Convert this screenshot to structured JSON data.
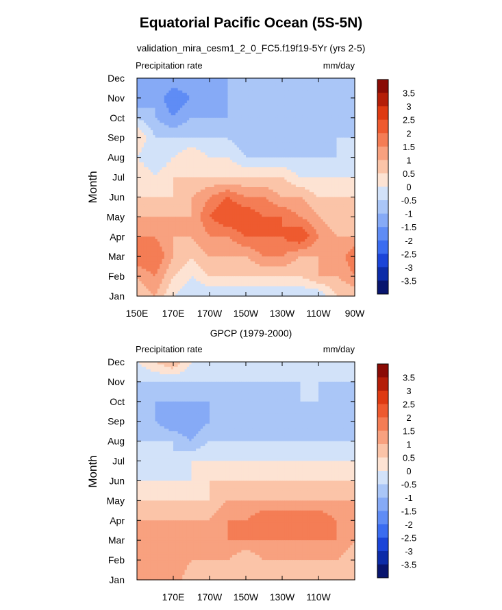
{
  "figure": {
    "title": "Equatorial Pacific Ocean (5S-5N)",
    "panel1_title": "validation_mira_cesm1_2_0_FC5.f19f19-5Yr (yrs 2-5)",
    "panel2_title": "GPCP (1979-2000)"
  },
  "colorbar": {
    "levels": [
      "3.5",
      "3",
      "2.5",
      "2",
      "1.5",
      "1",
      "0.5",
      "0",
      "-0.5",
      "-1",
      "-1.5",
      "-2",
      "-2.5",
      "-3",
      "-3.5"
    ],
    "colors": [
      "#08156e",
      "#0c2ca8",
      "#1a44d8",
      "#3a6cf0",
      "#5f8cf5",
      "#86aaf6",
      "#aac6f7",
      "#d2e2f9",
      "#fde3d3",
      "#fbc4a8",
      "#f8a17f",
      "#f47d55",
      "#ee5a2f",
      "#de3a12",
      "#b41e08",
      "#8a0b05"
    ]
  },
  "chart_data": [
    {
      "type": "heatmap",
      "title": "validation_mira_cesm1_2_0_FC5.f19f19-5Yr (yrs 2-5)",
      "left_label": "Precipitation rate",
      "right_label": "mm/day",
      "ylabel": "Month",
      "x_tick_labels": [
        "150E",
        "170E",
        "170W",
        "150W",
        "130W",
        "110W",
        "90W"
      ],
      "x_tick_lon": [
        150,
        170,
        190,
        210,
        230,
        250,
        270
      ],
      "xlim": [
        150,
        270
      ],
      "y_tick_labels": [
        "Jan",
        "Feb",
        "Mar",
        "Apr",
        "May",
        "Jun",
        "Jul",
        "Aug",
        "Sep",
        "Oct",
        "Nov",
        "Dec"
      ],
      "ylim": [
        1,
        12
      ],
      "lon": [
        150,
        160,
        170,
        180,
        190,
        200,
        210,
        220,
        230,
        240,
        250,
        260,
        270
      ],
      "month": [
        1,
        2,
        3,
        4,
        5,
        6,
        7,
        8,
        9,
        10,
        11,
        12
      ],
      "values": [
        [
          0.5,
          1.0,
          0.0,
          -0.5,
          -0.5,
          -0.5,
          -0.5,
          -0.5,
          -0.5,
          -0.5,
          -0.5,
          0.5,
          0.5
        ],
        [
          1.0,
          1.5,
          0.5,
          0.0,
          0.5,
          0.5,
          0.5,
          0.5,
          0.5,
          0.5,
          1.0,
          1.0,
          1.5
        ],
        [
          2.0,
          2.0,
          1.0,
          0.5,
          1.0,
          1.0,
          1.0,
          1.5,
          1.5,
          1.0,
          1.0,
          1.0,
          2.0
        ],
        [
          1.5,
          1.5,
          1.0,
          1.0,
          1.5,
          1.5,
          2.0,
          2.0,
          2.0,
          2.5,
          1.5,
          1.0,
          1.0
        ],
        [
          1.0,
          1.0,
          1.0,
          1.0,
          2.0,
          2.5,
          2.5,
          2.0,
          2.0,
          1.5,
          1.0,
          0.5,
          0.5
        ],
        [
          0.5,
          0.5,
          0.5,
          1.0,
          1.5,
          2.0,
          1.5,
          1.5,
          1.0,
          1.0,
          0.5,
          0.5,
          0.5
        ],
        [
          0.5,
          0.0,
          0.5,
          0.5,
          0.5,
          0.5,
          0.5,
          0.5,
          0.5,
          0.0,
          0.0,
          0.0,
          0.0
        ],
        [
          0.0,
          -0.5,
          0.0,
          0.5,
          0.0,
          0.0,
          -0.5,
          -0.5,
          -0.5,
          -0.5,
          -0.5,
          -0.5,
          -0.5
        ],
        [
          0.5,
          -0.5,
          -0.5,
          -0.5,
          -0.5,
          -0.5,
          -1.0,
          -1.0,
          -1.0,
          -1.0,
          -1.0,
          -0.5,
          -0.5
        ],
        [
          -0.5,
          -1.0,
          -1.5,
          -1.0,
          -1.0,
          -1.0,
          -1.0,
          -1.0,
          -1.0,
          -1.0,
          -1.0,
          -1.0,
          -1.0
        ],
        [
          -1.5,
          -1.0,
          -2.0,
          -1.5,
          -1.5,
          -1.0,
          -1.0,
          -1.0,
          -1.0,
          -1.0,
          -1.0,
          -1.0,
          -1.0
        ],
        [
          -1.0,
          -1.0,
          -1.0,
          -1.0,
          -1.0,
          -1.0,
          -1.0,
          -1.0,
          -1.0,
          -0.5,
          -0.5,
          -0.5,
          -1.0
        ]
      ]
    },
    {
      "type": "heatmap",
      "title": "GPCP (1979-2000)",
      "left_label": "Precipitation rate",
      "right_label": "mm/day",
      "ylabel": "Month",
      "x_tick_labels": [
        "170E",
        "170W",
        "150W",
        "130W",
        "110W"
      ],
      "x_tick_lon": [
        170,
        190,
        210,
        230,
        250
      ],
      "xlim": [
        150,
        270
      ],
      "y_tick_labels": [
        "Jan",
        "Feb",
        "Mar",
        "Apr",
        "May",
        "Jun",
        "Jul",
        "Aug",
        "Sep",
        "Oct",
        "Nov",
        "Dec"
      ],
      "ylim": [
        1,
        12
      ],
      "lon": [
        150,
        160,
        170,
        180,
        190,
        200,
        210,
        220,
        230,
        240,
        250,
        260,
        270
      ],
      "month": [
        1,
        2,
        3,
        4,
        5,
        6,
        7,
        8,
        9,
        10,
        11,
        12
      ],
      "values": [
        [
          1.0,
          1.0,
          1.5,
          0.5,
          0.5,
          0.5,
          0.5,
          0.5,
          0.5,
          0.5,
          0.5,
          0.5,
          0.5
        ],
        [
          1.0,
          1.5,
          1.5,
          1.0,
          1.0,
          1.0,
          0.5,
          1.0,
          1.0,
          1.0,
          1.0,
          1.0,
          0.5
        ],
        [
          1.5,
          1.5,
          1.0,
          1.0,
          1.0,
          1.5,
          1.5,
          1.5,
          1.5,
          1.5,
          1.5,
          1.5,
          1.0
        ],
        [
          1.0,
          1.0,
          1.0,
          1.0,
          1.0,
          1.5,
          1.5,
          2.0,
          2.0,
          2.0,
          2.0,
          1.5,
          1.0
        ],
        [
          0.5,
          0.5,
          0.5,
          0.5,
          0.5,
          1.0,
          1.0,
          1.0,
          1.0,
          1.0,
          1.0,
          1.0,
          1.0
        ],
        [
          0.0,
          0.0,
          0.0,
          0.0,
          0.5,
          0.5,
          0.5,
          0.5,
          0.5,
          0.5,
          0.5,
          0.5,
          0.5
        ],
        [
          -0.5,
          0.0,
          -0.5,
          0.0,
          0.0,
          0.0,
          0.0,
          0.0,
          0.0,
          0.0,
          0.0,
          0.0,
          0.0
        ],
        [
          -0.5,
          -0.5,
          -0.5,
          -1.0,
          -0.5,
          -0.5,
          -0.5,
          -0.5,
          -0.5,
          -0.5,
          -0.5,
          -0.5,
          -0.5
        ],
        [
          -1.0,
          -1.0,
          -1.5,
          -1.5,
          -1.0,
          -0.5,
          -1.0,
          -1.0,
          -1.0,
          -1.0,
          -0.5,
          -1.0,
          -1.0
        ],
        [
          -1.0,
          -1.0,
          -1.0,
          -1.0,
          -1.0,
          -0.5,
          -1.0,
          -1.0,
          -1.0,
          -0.5,
          -0.5,
          -1.0,
          -1.0
        ],
        [
          -0.5,
          -0.5,
          -0.5,
          -0.5,
          -0.5,
          -0.5,
          -0.5,
          -0.5,
          -0.5,
          -0.5,
          -0.5,
          -0.5,
          -0.5
        ],
        [
          0.0,
          0.5,
          1.0,
          0.0,
          0.0,
          0.0,
          -0.5,
          -0.5,
          -0.5,
          0.0,
          0.0,
          0.0,
          0.0
        ]
      ]
    }
  ]
}
